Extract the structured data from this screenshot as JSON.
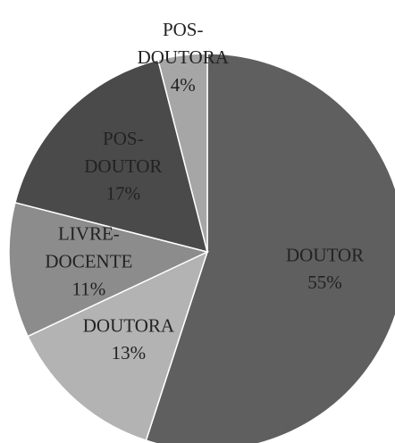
{
  "chart_data": {
    "type": "pie",
    "categories": [
      "DOUTOR",
      "DOUTORA",
      "LIVRE-DOCENTE",
      "POS-DOUTOR",
      "POS-DOUTORA"
    ],
    "values": [
      55,
      13,
      11,
      17,
      4
    ],
    "value_labels": [
      "55%",
      "13%",
      "11%",
      "17%",
      "4%"
    ],
    "colors": [
      "#5f5f5f",
      "#b3b3b3",
      "#8c8c8c",
      "#4a4a4a",
      "#a6a6a6"
    ]
  }
}
